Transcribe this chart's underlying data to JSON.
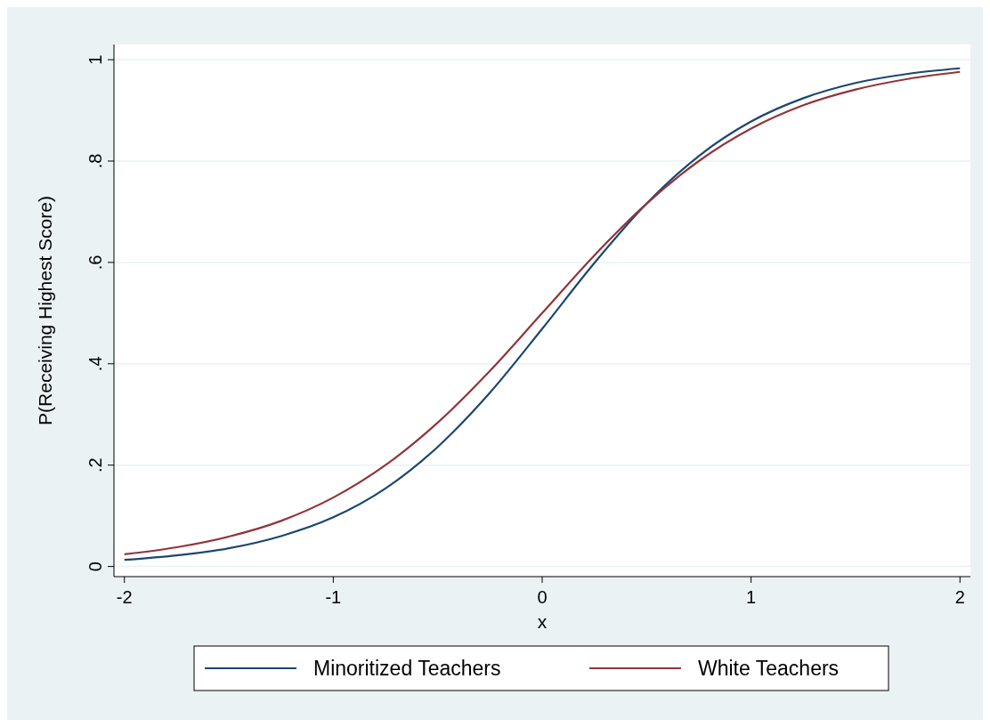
{
  "chart_data": {
    "type": "line",
    "xlabel": "x",
    "ylabel": "P(Receiving Highest Score)",
    "x": [
      -2,
      -1.75,
      -1.5,
      -1.25,
      -1,
      -0.75,
      -0.5,
      -0.25,
      0,
      0.25,
      0.5,
      0.75,
      1,
      1.25,
      1.5,
      1.75,
      2
    ],
    "series": [
      {
        "name": "Minoritized Teachers",
        "color": "#1a476f",
        "values": [
          0.013,
          0.022,
          0.036,
          0.06,
          0.097,
          0.154,
          0.236,
          0.343,
          0.469,
          0.599,
          0.716,
          0.81,
          0.878,
          0.924,
          0.954,
          0.972,
          0.983
        ]
      },
      {
        "name": "White Teachers",
        "color": "#90353b",
        "values": [
          0.024,
          0.038,
          0.059,
          0.09,
          0.136,
          0.2,
          0.284,
          0.386,
          0.5,
          0.614,
          0.716,
          0.8,
          0.864,
          0.91,
          0.941,
          0.962,
          0.976
        ]
      }
    ],
    "xlim": [
      -2.05,
      2.05
    ],
    "xticks": [
      -2,
      -1,
      0,
      1,
      2
    ],
    "ylim": [
      -0.02,
      1.03
    ],
    "yticks": [
      {
        "value": 0,
        "label": "0"
      },
      {
        "value": 0.2,
        "label": ".2"
      },
      {
        "value": 0.4,
        "label": ".4"
      },
      {
        "value": 0.6,
        "label": ".6"
      },
      {
        "value": 0.8,
        "label": ".8"
      },
      {
        "value": 1,
        "label": "1"
      }
    ],
    "grid": "y",
    "legend": "bottom",
    "marker": "none",
    "line_style": "solid"
  }
}
